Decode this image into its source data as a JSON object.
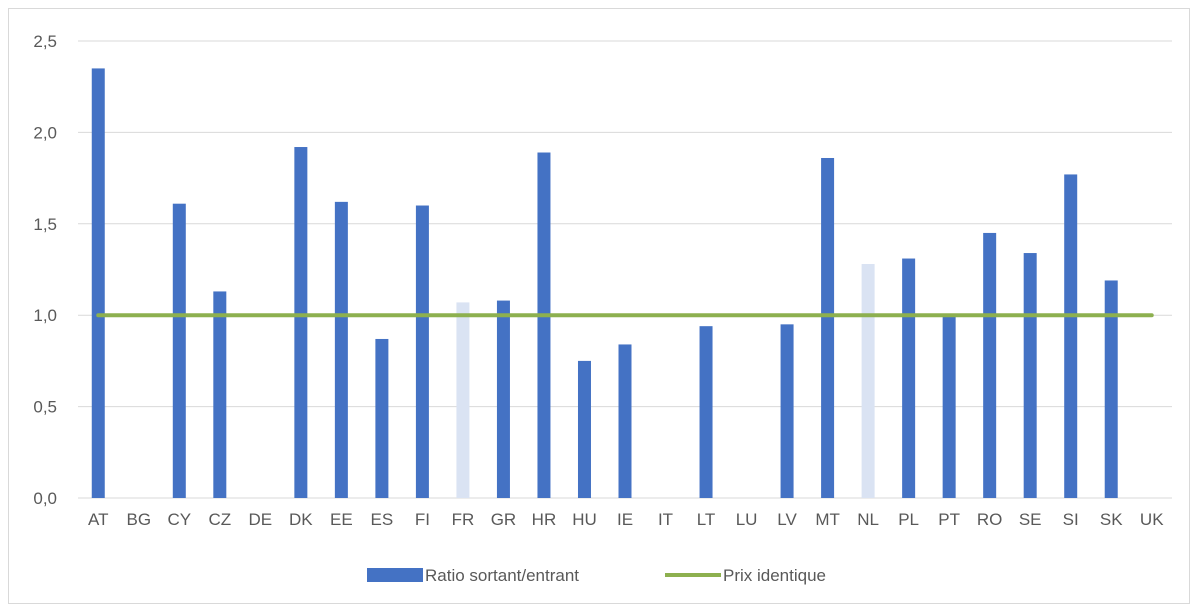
{
  "chart_data": {
    "type": "bar",
    "title": "",
    "xlabel": "",
    "ylabel": "",
    "ylim": [
      0,
      2.5
    ],
    "yticks": [
      "0,0",
      "0,5",
      "1,0",
      "1,5",
      "2,0",
      "2,5"
    ],
    "ytick_values": [
      0,
      0.5,
      1.0,
      1.5,
      2.0,
      2.5
    ],
    "grid": true,
    "legend_position": "bottom",
    "categories": [
      "AT",
      "BG",
      "CY",
      "CZ",
      "DE",
      "DK",
      "EE",
      "ES",
      "FI",
      "FR",
      "GR",
      "HR",
      "HU",
      "IE",
      "IT",
      "LT",
      "LU",
      "LV",
      "MT",
      "NL",
      "PL",
      "PT",
      "RO",
      "SE",
      "SI",
      "SK",
      "UK"
    ],
    "series": [
      {
        "name": "Ratio sortant/entrant",
        "type": "bar",
        "color": "#4472c4",
        "highlight_color": "#dae3f3",
        "highlighted_categories": [
          "FR",
          "NL"
        ],
        "values": [
          2.35,
          null,
          1.61,
          1.13,
          null,
          1.92,
          1.62,
          0.87,
          1.6,
          1.07,
          1.08,
          1.89,
          0.75,
          0.84,
          null,
          0.94,
          null,
          0.95,
          1.86,
          1.28,
          1.31,
          1.0,
          1.45,
          1.34,
          1.77,
          1.19,
          null
        ]
      },
      {
        "name": "Prix identique",
        "type": "line",
        "color": "#8db04f",
        "values": [
          1.0,
          1.0,
          1.0,
          1.0,
          1.0,
          1.0,
          1.0,
          1.0,
          1.0,
          1.0,
          1.0,
          1.0,
          1.0,
          1.0,
          1.0,
          1.0,
          1.0,
          1.0,
          1.0,
          1.0,
          1.0,
          1.0,
          1.0,
          1.0,
          1.0,
          1.0,
          1.0
        ]
      }
    ]
  }
}
